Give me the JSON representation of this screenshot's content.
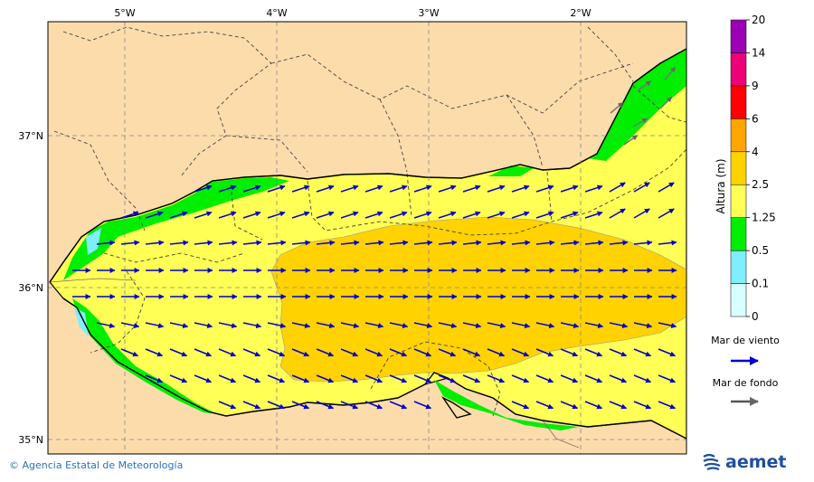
{
  "map": {
    "longitude_labels": [
      "5°W",
      "4°W",
      "3°W",
      "2°W"
    ],
    "latitude_labels": [
      "37°N",
      "36°N",
      "35°N"
    ]
  },
  "colorbar": {
    "title": "Altura (m)",
    "levels": [
      "0",
      "0.1",
      "0.5",
      "1.25",
      "2.5",
      "4",
      "6",
      "9",
      "14",
      "20"
    ],
    "colors": [
      "#d8ffff",
      "#7feeff",
      "#00ee00",
      "#ffff55",
      "#ffd200",
      "#ffa500",
      "#ff0000",
      "#ee0077",
      "#9b00b4"
    ]
  },
  "legend": {
    "wind_sea_label": "Mar de viento",
    "wind_sea_color": "#0000cc",
    "swell_label": "Mar de fondo",
    "swell_color": "#555555"
  },
  "footer": {
    "credit": "© Agencia Estatal de Meteorología",
    "brand": "aemet"
  }
}
